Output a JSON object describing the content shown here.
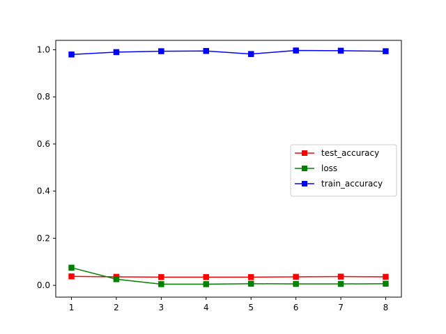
{
  "chart_data": {
    "type": "line",
    "title": "",
    "xlabel": "",
    "ylabel": "",
    "x": [
      1,
      2,
      3,
      4,
      5,
      6,
      7,
      8
    ],
    "xlim": [
      0.65,
      8.35
    ],
    "ylim": [
      -0.05,
      1.04
    ],
    "xticks": [
      1,
      2,
      3,
      4,
      5,
      6,
      7,
      8
    ],
    "yticks": [
      0.0,
      0.2,
      0.4,
      0.6,
      0.8,
      1.0
    ],
    "xtick_labels": [
      "1",
      "2",
      "3",
      "4",
      "5",
      "6",
      "7",
      "8"
    ],
    "ytick_labels": [
      "0.0",
      "0.2",
      "0.4",
      "0.6",
      "0.8",
      "1.0"
    ],
    "grid": false,
    "legend_position": "center-right",
    "series": [
      {
        "name": "test_accuracy",
        "color": "#ff0000",
        "marker": "square",
        "values": [
          0.038,
          0.036,
          0.035,
          0.035,
          0.035,
          0.036,
          0.037,
          0.036
        ]
      },
      {
        "name": "loss",
        "color": "#008000",
        "marker": "square",
        "values": [
          0.075,
          0.026,
          0.005,
          0.005,
          0.007,
          0.006,
          0.006,
          0.007
        ]
      },
      {
        "name": "train_accuracy",
        "color": "#0000ff",
        "marker": "square",
        "values": [
          0.98,
          0.99,
          0.994,
          0.995,
          0.982,
          0.997,
          0.996,
          0.994
        ]
      }
    ]
  }
}
